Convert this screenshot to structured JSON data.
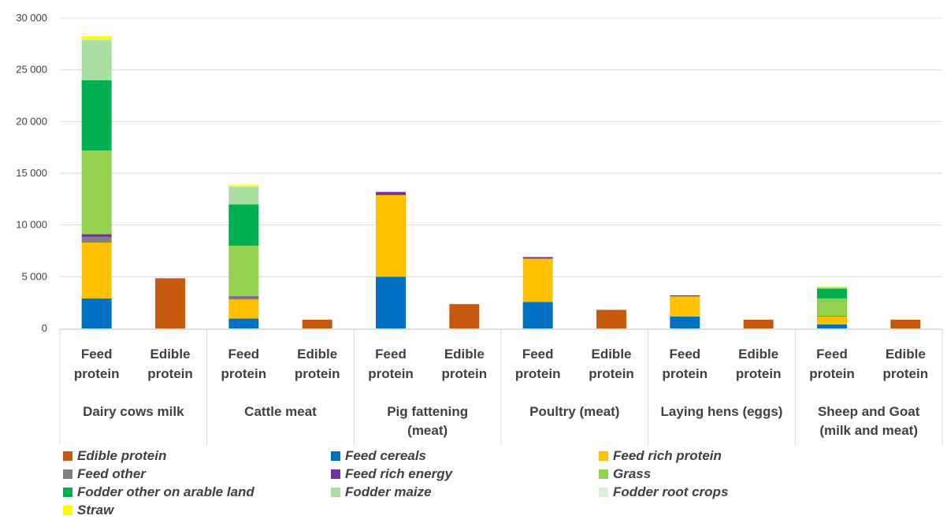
{
  "chart_data": {
    "type": "bar",
    "stacked": true,
    "ylim": [
      0,
      30000
    ],
    "yticks": [
      "0",
      "5 000",
      "10 000",
      "15 000",
      "20 000",
      "25 000",
      "30 000"
    ],
    "ytick_values": [
      0,
      5000,
      10000,
      15000,
      20000,
      25000,
      30000
    ],
    "grid": true,
    "legend_position": "bottom",
    "groups": [
      {
        "label": [
          "Dairy cows milk"
        ],
        "bars": [
          {
            "label": [
              "Feed",
              "protein"
            ],
            "values": {
              "Feed cereals": 2900,
              "Feed rich protein": 5400,
              "Feed other": 550,
              "Feed rich energy": 250,
              "Grass": 8100,
              "Fodder other on arable land": 6800,
              "Fodder maize": 3900,
              "Fodder root crops": 100,
              "Straw": 250
            }
          },
          {
            "label": [
              "Edible",
              "protein"
            ],
            "values": {
              "Edible protein": 4850
            }
          }
        ]
      },
      {
        "label": [
          "Cattle meat"
        ],
        "bars": [
          {
            "label": [
              "Feed",
              "protein"
            ],
            "values": {
              "Feed cereals": 950,
              "Feed rich protein": 1850,
              "Feed other": 200,
              "Feed rich energy": 100,
              "Grass": 4900,
              "Fodder other on arable land": 4000,
              "Fodder maize": 1700,
              "Fodder root crops": 50,
              "Straw": 150
            }
          },
          {
            "label": [
              "Edible",
              "protein"
            ],
            "values": {
              "Edible protein": 850
            }
          }
        ]
      },
      {
        "label": [
          "Pig fattening",
          "(meat)"
        ],
        "bars": [
          {
            "label": [
              "Feed",
              "protein"
            ],
            "values": {
              "Feed cereals": 5000,
              "Feed rich protein": 7900,
              "Feed rich energy": 300
            }
          },
          {
            "label": [
              "Edible",
              "protein"
            ],
            "values": {
              "Edible protein": 2350
            }
          }
        ]
      },
      {
        "label": [
          "Poultry (meat)"
        ],
        "bars": [
          {
            "label": [
              "Feed",
              "protein"
            ],
            "values": {
              "Feed cereals": 2550,
              "Feed rich protein": 4200,
              "Feed rich energy": 150
            }
          },
          {
            "label": [
              "Edible",
              "protein"
            ],
            "values": {
              "Edible protein": 1800
            }
          }
        ]
      },
      {
        "label": [
          "Laying hens (eggs)"
        ],
        "bars": [
          {
            "label": [
              "Feed",
              "protein"
            ],
            "values": {
              "Feed cereals": 1150,
              "Feed rich protein": 1950,
              "Feed rich energy": 100
            }
          },
          {
            "label": [
              "Edible",
              "protein"
            ],
            "values": {
              "Edible protein": 850
            }
          }
        ]
      },
      {
        "label": [
          "Sheep and Goat",
          "(milk and meat)"
        ],
        "bars": [
          {
            "label": [
              "Feed",
              "protein"
            ],
            "values": {
              "Feed cereals": 400,
              "Feed rich protein": 750,
              "Feed rich energy": 50,
              "Grass": 1700,
              "Fodder other on arable land": 950,
              "Fodder maize": 150,
              "Straw": 50
            }
          },
          {
            "label": [
              "Edible",
              "protein"
            ],
            "values": {
              "Edible protein": 850
            }
          }
        ]
      }
    ],
    "series": [
      {
        "name": "Edible protein",
        "color": "#C55A11"
      },
      {
        "name": "Feed cereals",
        "color": "#0070C0"
      },
      {
        "name": "Feed rich protein",
        "color": "#FFC000"
      },
      {
        "name": "Feed other",
        "color": "#7F7F7F"
      },
      {
        "name": "Feed rich energy",
        "color": "#7030A0"
      },
      {
        "name": "Grass",
        "color": "#92D050"
      },
      {
        "name": "Fodder other on arable land",
        "color": "#00B050"
      },
      {
        "name": "Fodder maize",
        "color": "#A9DFA0"
      },
      {
        "name": "Fodder root crops",
        "color": "#D9F2D6"
      },
      {
        "name": "Straw",
        "color": "#FFFF00"
      }
    ],
    "stack_order": [
      "Edible protein",
      "Feed cereals",
      "Feed rich protein",
      "Feed other",
      "Feed rich energy",
      "Grass",
      "Fodder other on arable land",
      "Fodder maize",
      "Fodder root crops",
      "Straw"
    ]
  }
}
